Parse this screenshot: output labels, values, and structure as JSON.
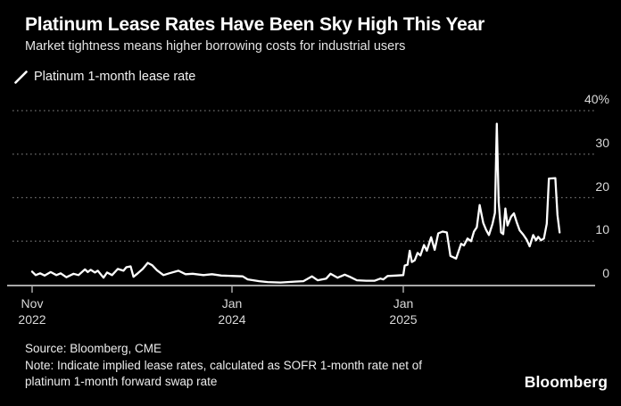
{
  "header": {
    "title": "Platinum Lease Rates Have Been Sky High This Year",
    "subtitle": "Market tightness means higher borrowing costs for industrial users"
  },
  "legend": {
    "label": "Platinum 1-month lease rate",
    "marker": "diagonal-line-segment",
    "marker_color": "#ffffff"
  },
  "footer": {
    "source": "Source: Bloomberg, CME",
    "note": "Note: Indicate implied lease rates, calculated as SOFR 1-month rate net of platinum 1-month forward swap rate",
    "brand": "Bloomberg"
  },
  "colors": {
    "background": "#000000",
    "series_line": "#ffffff",
    "gridline": "#6e6e6e",
    "baseline": "#a8a8a8",
    "axis_text": "#d9d9d9",
    "title_text": "#ffffff"
  },
  "chart_data": {
    "type": "line",
    "title": "Platinum 1-month lease rate",
    "x_unit": "months since Nov 2022",
    "y_unit": "percent",
    "ylim": [
      0,
      40
    ],
    "xlim": [
      -1.4,
      39.4
    ],
    "grid": "horizontal-dotted",
    "legend_position": "top-left",
    "y_axis_side": "right",
    "y_ticks": [
      {
        "label": "40%",
        "value": 40
      },
      {
        "label": "30",
        "value": 30
      },
      {
        "label": "20",
        "value": 20
      },
      {
        "label": "10",
        "value": 10
      },
      {
        "label": "0",
        "value": 0
      }
    ],
    "x_ticks": [
      {
        "month": "Nov",
        "year": "2022",
        "value": 0
      },
      {
        "month": "Jan",
        "year": "2024",
        "value": 14
      },
      {
        "month": "Jan",
        "year": "2025",
        "value": 26
      }
    ],
    "points": [
      [
        0.0,
        3.0
      ],
      [
        0.25,
        2.2
      ],
      [
        0.56,
        2.6
      ],
      [
        0.88,
        2.1
      ],
      [
        1.3,
        2.9
      ],
      [
        1.7,
        2.2
      ],
      [
        2.0,
        2.6
      ],
      [
        2.4,
        1.7
      ],
      [
        2.9,
        2.5
      ],
      [
        3.25,
        2.2
      ],
      [
        3.7,
        3.5
      ],
      [
        3.9,
        2.9
      ],
      [
        4.1,
        3.4
      ],
      [
        4.4,
        2.8
      ],
      [
        4.6,
        3.2
      ],
      [
        5.0,
        1.6
      ],
      [
        5.25,
        2.8
      ],
      [
        5.6,
        2.2
      ],
      [
        6.0,
        3.6
      ],
      [
        6.4,
        3.2
      ],
      [
        6.6,
        4.0
      ],
      [
        6.9,
        4.2
      ],
      [
        7.1,
        1.8
      ],
      [
        7.4,
        2.6
      ],
      [
        7.75,
        3.6
      ],
      [
        8.1,
        5.0
      ],
      [
        8.4,
        4.5
      ],
      [
        8.75,
        3.3
      ],
      [
        9.2,
        2.2
      ],
      [
        9.6,
        2.6
      ],
      [
        10.25,
        3.2
      ],
      [
        10.75,
        2.4
      ],
      [
        11.25,
        2.5
      ],
      [
        12.0,
        2.2
      ],
      [
        12.6,
        2.4
      ],
      [
        13.25,
        2.1
      ],
      [
        14.1,
        2.0
      ],
      [
        14.75,
        1.9
      ],
      [
        15.1,
        1.2
      ],
      [
        15.9,
        0.8
      ],
      [
        16.5,
        0.6
      ],
      [
        17.4,
        0.5
      ],
      [
        18.4,
        0.7
      ],
      [
        19.0,
        0.8
      ],
      [
        19.6,
        1.9
      ],
      [
        20.0,
        1.0
      ],
      [
        20.6,
        1.4
      ],
      [
        20.9,
        2.5
      ],
      [
        21.4,
        1.6
      ],
      [
        21.9,
        2.3
      ],
      [
        22.25,
        1.8
      ],
      [
        22.75,
        1.0
      ],
      [
        23.4,
        0.9
      ],
      [
        24.0,
        0.9
      ],
      [
        24.4,
        1.4
      ],
      [
        24.6,
        1.2
      ],
      [
        24.9,
        2.0
      ],
      [
        25.5,
        2.1
      ],
      [
        26.0,
        2.2
      ],
      [
        26.1,
        4.4
      ],
      [
        26.3,
        4.6
      ],
      [
        26.45,
        7.8
      ],
      [
        26.6,
        5.2
      ],
      [
        26.8,
        5.6
      ],
      [
        27.0,
        7.3
      ],
      [
        27.2,
        6.7
      ],
      [
        27.45,
        9.1
      ],
      [
        27.65,
        7.8
      ],
      [
        27.95,
        10.9
      ],
      [
        28.2,
        8.0
      ],
      [
        28.45,
        11.8
      ],
      [
        28.75,
        12.2
      ],
      [
        29.05,
        12.0
      ],
      [
        29.3,
        6.6
      ],
      [
        29.7,
        6.0
      ],
      [
        30.05,
        9.4
      ],
      [
        30.25,
        9.0
      ],
      [
        30.5,
        10.6
      ],
      [
        30.75,
        10.0
      ],
      [
        30.95,
        12.2
      ],
      [
        31.15,
        13.2
      ],
      [
        31.35,
        18.3
      ],
      [
        31.6,
        14.2
      ],
      [
        31.8,
        12.6
      ],
      [
        32.0,
        11.4
      ],
      [
        32.25,
        14.0
      ],
      [
        32.42,
        16.5
      ],
      [
        32.55,
        37.0
      ],
      [
        32.68,
        19.0
      ],
      [
        32.85,
        12.0
      ],
      [
        33.0,
        11.6
      ],
      [
        33.15,
        17.5
      ],
      [
        33.3,
        13.6
      ],
      [
        33.55,
        15.6
      ],
      [
        33.75,
        16.4
      ],
      [
        33.95,
        14.3
      ],
      [
        34.15,
        12.5
      ],
      [
        34.4,
        11.5
      ],
      [
        34.65,
        10.3
      ],
      [
        34.85,
        8.8
      ],
      [
        35.1,
        11.4
      ],
      [
        35.3,
        10.2
      ],
      [
        35.45,
        11.0
      ],
      [
        35.65,
        10.2
      ],
      [
        35.85,
        10.6
      ],
      [
        36.05,
        14.0
      ],
      [
        36.2,
        24.4
      ],
      [
        36.65,
        24.5
      ],
      [
        36.8,
        16.0
      ],
      [
        36.95,
        12.0
      ]
    ]
  }
}
